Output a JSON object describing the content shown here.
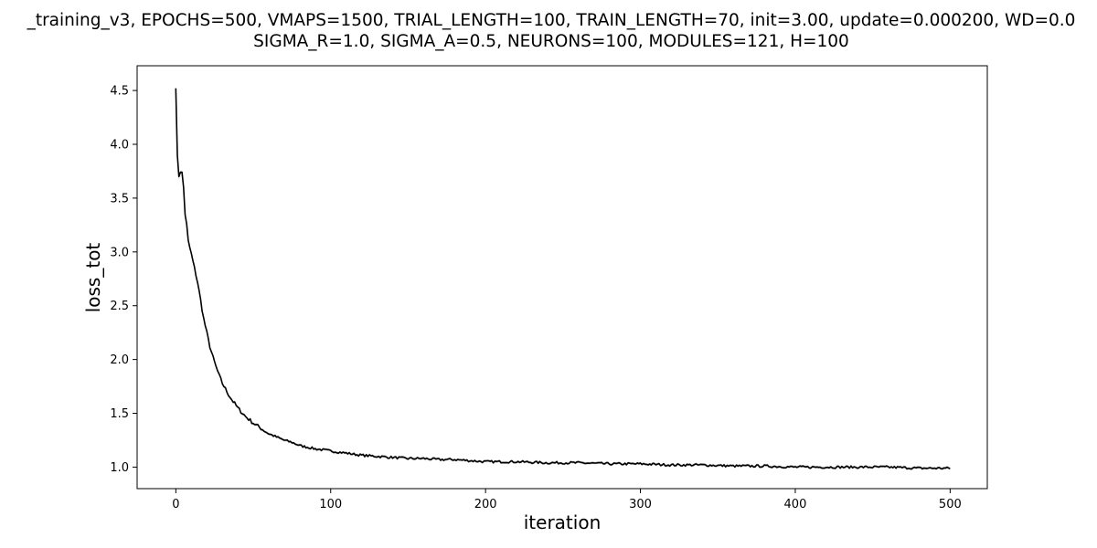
{
  "chart_data": {
    "type": "line",
    "title": "_training_v3, EPOCHS=500, VMAPS=1500, TRIAL_LENGTH=100, TRAIN_LENGTH=70, init=3.00, update=0.000200, WD=0.0",
    "subtitle": "SIGMA_R=1.0, SIGMA_A=0.5, NEURONS=100, MODULES=121, H=100",
    "xlabel": "iteration",
    "ylabel": "loss_tot",
    "xlim": [
      -25,
      524
    ],
    "ylim": [
      0.8,
      4.73
    ],
    "xticks": [
      0,
      100,
      200,
      300,
      400,
      500
    ],
    "yticks": [
      1.0,
      1.5,
      2.0,
      2.5,
      3.0,
      3.5,
      4.0,
      4.5
    ],
    "grid": false,
    "legend": "none",
    "series": [
      {
        "color": "#000000",
        "x": [
          0,
          1,
          2,
          3,
          4,
          5,
          6,
          7,
          8,
          10,
          12,
          14,
          16,
          18,
          20,
          22,
          24,
          26,
          28,
          30,
          33,
          36,
          40,
          45,
          50,
          55,
          60,
          65,
          70,
          75,
          80,
          90,
          100,
          110,
          120,
          130,
          140,
          150,
          160,
          170,
          180,
          190,
          200,
          220,
          240,
          260,
          280,
          300,
          320,
          340,
          360,
          380,
          400,
          420,
          440,
          460,
          480,
          500
        ],
        "y": [
          4.52,
          3.9,
          3.7,
          3.74,
          3.74,
          3.6,
          3.35,
          3.25,
          3.1,
          2.98,
          2.85,
          2.72,
          2.55,
          2.38,
          2.25,
          2.12,
          2.02,
          1.93,
          1.85,
          1.78,
          1.7,
          1.63,
          1.55,
          1.47,
          1.41,
          1.36,
          1.31,
          1.28,
          1.25,
          1.23,
          1.2,
          1.17,
          1.15,
          1.13,
          1.11,
          1.1,
          1.09,
          1.08,
          1.08,
          1.07,
          1.07,
          1.06,
          1.05,
          1.05,
          1.04,
          1.04,
          1.03,
          1.03,
          1.02,
          1.02,
          1.01,
          1.01,
          1.0,
          1.0,
          1.0,
          1.0,
          0.99,
          0.99
        ]
      }
    ]
  }
}
